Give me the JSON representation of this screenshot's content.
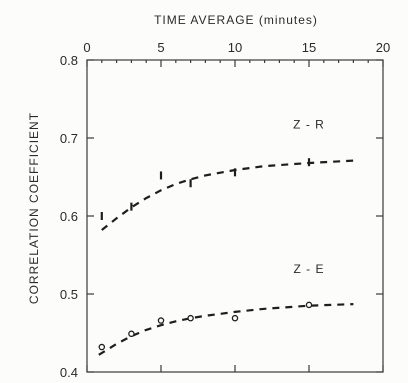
{
  "chart_data": {
    "type": "scatter",
    "xlabel": "TIME AVERAGE (minutes)",
    "ylabel": "CORRELATION COEFFICIENT",
    "xlim": [
      0,
      20
    ],
    "ylim": [
      0.4,
      0.8
    ],
    "x_ticks": [
      "0",
      "5",
      "10",
      "15",
      "20"
    ],
    "y_ticks": [
      "0.8",
      "0.7",
      "0.6",
      "0.5",
      "0.4"
    ],
    "x_tick_values": [
      0,
      5,
      10,
      15,
      20
    ],
    "y_tick_values": [
      0.8,
      0.7,
      0.6,
      0.5,
      0.4
    ],
    "grid": false,
    "colors": {
      "ink": "#1e1e1e",
      "background": "#fcfcfa"
    },
    "series": [
      {
        "name": "Z-R",
        "marker": "x",
        "points": [
          {
            "x": 1,
            "y": 0.6
          },
          {
            "x": 3,
            "y": 0.612
          },
          {
            "x": 5,
            "y": 0.652
          },
          {
            "x": 7,
            "y": 0.642
          },
          {
            "x": 10,
            "y": 0.656
          },
          {
            "x": 15,
            "y": 0.669
          }
        ],
        "trend": [
          {
            "x": 1,
            "y": 0.582
          },
          {
            "x": 2,
            "y": 0.597
          },
          {
            "x": 3,
            "y": 0.611
          },
          {
            "x": 4,
            "y": 0.623
          },
          {
            "x": 5,
            "y": 0.633
          },
          {
            "x": 6,
            "y": 0.641
          },
          {
            "x": 7,
            "y": 0.647
          },
          {
            "x": 8,
            "y": 0.652
          },
          {
            "x": 10,
            "y": 0.659
          },
          {
            "x": 12,
            "y": 0.664
          },
          {
            "x": 15,
            "y": 0.668
          },
          {
            "x": 18,
            "y": 0.671
          }
        ]
      },
      {
        "name": "Z-E",
        "marker": "o",
        "points": [
          {
            "x": 1,
            "y": 0.432
          },
          {
            "x": 3,
            "y": 0.449
          },
          {
            "x": 5,
            "y": 0.466
          },
          {
            "x": 7,
            "y": 0.469
          },
          {
            "x": 10,
            "y": 0.469
          },
          {
            "x": 15,
            "y": 0.486
          }
        ],
        "trend": [
          {
            "x": 0.8,
            "y": 0.422
          },
          {
            "x": 2,
            "y": 0.436
          },
          {
            "x": 3,
            "y": 0.446
          },
          {
            "x": 4,
            "y": 0.454
          },
          {
            "x": 5,
            "y": 0.46
          },
          {
            "x": 6,
            "y": 0.465
          },
          {
            "x": 7,
            "y": 0.469
          },
          {
            "x": 8,
            "y": 0.472
          },
          {
            "x": 10,
            "y": 0.477
          },
          {
            "x": 12,
            "y": 0.481
          },
          {
            "x": 15,
            "y": 0.485
          },
          {
            "x": 18,
            "y": 0.487
          }
        ]
      }
    ]
  }
}
